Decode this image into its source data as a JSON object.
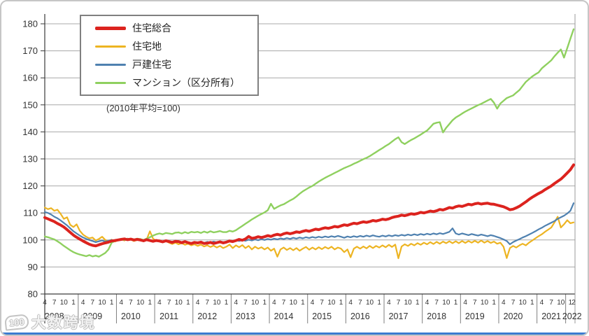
{
  "watermark": {
    "logo": "100",
    "text": "大数跨境"
  },
  "frame": {
    "accent_bar_color": "#3b7bd0",
    "grid_color": "#a8a8a8",
    "axis_color": "#3a3a3a",
    "separator_color": "#7f7f7f"
  },
  "chart_data": {
    "type": "line",
    "title": "",
    "note": "(2010年平均=100)",
    "legend_position": "top-left",
    "grid": true,
    "y_axis": {
      "min": 80,
      "max": 180,
      "step": 10,
      "tick_labels": [
        "80",
        "90",
        "100",
        "110",
        "120",
        "130",
        "140",
        "150",
        "160",
        "170",
        "180"
      ]
    },
    "x_axis": {
      "start_month": "2008-04",
      "end_month": "2022-02",
      "months_total": 167,
      "quarter_tick_pattern": [
        "4",
        "7",
        "10",
        "1"
      ],
      "final_extra_tick": "2",
      "years": [
        "2008",
        "2009",
        "2010",
        "2011",
        "2012",
        "2013",
        "2014",
        "2015",
        "2016",
        "2017",
        "2018",
        "2019",
        "2020",
        "2021",
        "2022"
      ]
    },
    "series": [
      {
        "key": "total",
        "name": "住宅総合",
        "color": "#dc231e",
        "values": [
          108.3,
          107.8,
          107.3,
          106.8,
          106.1,
          105.5,
          104.8,
          103.8,
          102.8,
          101.8,
          101.0,
          100.3,
          99.6,
          99.0,
          98.4,
          98.0,
          97.8,
          98.2,
          98.6,
          98.9,
          99.2,
          99.6,
          99.8,
          100.0,
          100.2,
          100.4,
          100.1,
          100.3,
          100.0,
          100.2,
          100.0,
          99.7,
          100.1,
          99.8,
          99.5,
          99.8,
          99.6,
          99.3,
          99.7,
          99.4,
          99.1,
          99.5,
          99.4,
          99.0,
          99.4,
          99.0,
          98.7,
          99.1,
          98.9,
          99.2,
          98.7,
          98.8,
          99.1,
          98.7,
          99.0,
          99.3,
          98.9,
          99.2,
          99.6,
          99.4,
          99.8,
          100.2,
          99.9,
          100.4,
          101.3,
          100.6,
          100.8,
          101.2,
          100.9,
          101.2,
          101.6,
          101.3,
          101.8,
          102.1,
          101.8,
          102.3,
          102.6,
          102.3,
          102.6,
          103.0,
          102.8,
          103.2,
          103.5,
          103.2,
          103.6,
          104.0,
          103.8,
          104.2,
          104.5,
          104.3,
          104.6,
          105.0,
          104.8,
          105.2,
          105.6,
          105.4,
          105.8,
          106.2,
          106.0,
          106.4,
          106.7,
          106.5,
          106.8,
          107.2,
          107.0,
          107.3,
          107.7,
          107.5,
          107.8,
          108.3,
          108.6,
          108.8,
          109.2,
          109.0,
          109.3,
          109.7,
          109.5,
          109.8,
          110.2,
          110.0,
          110.3,
          110.7,
          110.5,
          110.8,
          111.3,
          111.1,
          111.5,
          112.0,
          111.8,
          112.3,
          112.6,
          112.4,
          112.8,
          113.2,
          113.0,
          113.4,
          113.6,
          113.3,
          113.5,
          113.6,
          113.3,
          113.2,
          112.9,
          112.6,
          112.3,
          111.8,
          111.2,
          111.4,
          111.9,
          112.5,
          113.3,
          114.1,
          115.0,
          115.8,
          116.5,
          117.2,
          117.8,
          118.6,
          119.3,
          120.0,
          120.9,
          121.7,
          122.5,
          123.6,
          124.8,
          126.0,
          127.8
        ]
      },
      {
        "key": "land",
        "name": "住宅地",
        "color": "#edb422",
        "values": [
          112.0,
          111.4,
          111.8,
          110.8,
          111.2,
          109.6,
          107.8,
          108.4,
          105.6,
          104.8,
          105.8,
          103.4,
          102.0,
          101.2,
          100.6,
          100.9,
          99.8,
          100.4,
          101.2,
          100.0,
          99.5,
          100.1,
          99.4,
          99.9,
          100.3,
          99.8,
          100.5,
          100.1,
          99.6,
          100.0,
          100.4,
          99.8,
          100.2,
          103.2,
          100.5,
          99.6,
          99.9,
          99.2,
          99.6,
          99.0,
          98.5,
          99.0,
          98.4,
          98.8,
          98.2,
          98.6,
          98.0,
          98.4,
          97.8,
          98.3,
          97.6,
          98.0,
          97.4,
          97.9,
          97.2,
          97.8,
          97.0,
          97.5,
          98.3,
          97.0,
          98.0,
          97.3,
          98.1,
          97.0,
          97.8,
          96.5,
          97.5,
          96.8,
          97.3,
          96.5,
          97.2,
          96.0,
          96.8,
          93.8,
          96.5,
          97.2,
          96.3,
          97.0,
          96.2,
          97.0,
          96.0,
          96.8,
          97.4,
          96.4,
          97.2,
          96.5,
          97.3,
          96.6,
          97.4,
          96.8,
          97.5,
          96.5,
          97.2,
          96.8,
          95.5,
          96.5,
          93.6,
          96.8,
          97.5,
          96.8,
          97.6,
          96.9,
          97.8,
          97.0,
          97.8,
          97.2,
          98.0,
          97.3,
          98.2,
          97.4,
          98.3,
          93.2,
          97.6,
          98.4,
          97.8,
          98.6,
          98.0,
          98.8,
          98.2,
          99.0,
          98.4,
          99.2,
          98.5,
          99.3,
          98.6,
          99.4,
          98.8,
          99.5,
          98.8,
          99.5,
          98.8,
          99.6,
          98.9,
          99.6,
          99.0,
          99.7,
          99.0,
          99.8,
          99.0,
          99.6,
          98.9,
          99.4,
          98.6,
          99.0,
          97.5,
          93.3,
          97.0,
          97.8,
          97.2,
          98.0,
          98.6,
          98.0,
          99.0,
          99.8,
          100.6,
          101.4,
          102.1,
          103.0,
          103.8,
          104.6,
          106.5,
          108.6,
          104.6,
          105.8,
          107.3,
          106.2,
          106.5
        ]
      },
      {
        "key": "detached",
        "name": "戸建住宅",
        "color": "#4f81b0",
        "values": [
          110.3,
          110.0,
          109.4,
          108.6,
          108.0,
          107.2,
          106.3,
          105.4,
          104.3,
          103.2,
          102.4,
          101.6,
          100.9,
          100.4,
          100.0,
          99.6,
          99.2,
          99.5,
          99.8,
          99.4,
          99.7,
          100.0,
          99.7,
          100.1,
          100.4,
          100.1,
          100.5,
          100.3,
          99.9,
          100.2,
          100.0,
          99.7,
          100.0,
          99.8,
          99.5,
          99.9,
          99.6,
          99.3,
          99.7,
          99.5,
          99.1,
          99.5,
          99.2,
          98.9,
          99.3,
          99.0,
          98.7,
          99.1,
          98.8,
          99.2,
          98.9,
          99.3,
          99.0,
          99.4,
          99.1,
          99.5,
          99.2,
          99.4,
          99.8,
          99.5,
          99.9,
          99.6,
          100.0,
          99.7,
          100.1,
          99.8,
          100.2,
          99.9,
          100.3,
          100.0,
          100.4,
          100.1,
          100.5,
          100.2,
          100.6,
          100.3,
          100.7,
          100.4,
          100.8,
          100.5,
          100.9,
          100.6,
          101.0,
          100.7,
          101.1,
          100.8,
          101.2,
          100.9,
          101.3,
          101.0,
          101.4,
          101.1,
          101.5,
          101.2,
          100.8,
          101.3,
          101.0,
          101.4,
          101.1,
          101.5,
          101.2,
          101.6,
          101.3,
          101.7,
          101.4,
          101.2,
          101.6,
          101.3,
          101.7,
          101.4,
          101.8,
          101.5,
          101.9,
          101.6,
          102.0,
          101.7,
          102.1,
          101.8,
          102.2,
          101.9,
          102.3,
          102.0,
          102.4,
          102.1,
          102.5,
          102.2,
          102.6,
          103.0,
          104.3,
          102.4,
          102.0,
          102.4,
          102.1,
          101.8,
          102.2,
          101.9,
          101.6,
          102.0,
          101.7,
          101.4,
          101.8,
          101.5,
          101.1,
          100.7,
          100.2,
          99.6,
          98.4,
          99.2,
          99.8,
          100.3,
          100.9,
          101.4,
          102.0,
          102.6,
          103.2,
          103.9,
          104.5,
          105.2,
          105.8,
          106.4,
          107.0,
          107.8,
          108.4,
          109.0,
          109.8,
          110.8,
          113.6
        ]
      },
      {
        "key": "condo",
        "name": "マンション（区分所有）",
        "color": "#8fd05f",
        "values": [
          101.3,
          101.0,
          100.6,
          100.2,
          99.5,
          98.7,
          97.8,
          97.0,
          96.2,
          95.5,
          95.0,
          94.6,
          94.3,
          94.0,
          94.4,
          93.9,
          94.2,
          93.8,
          94.5,
          95.2,
          96.5,
          99.0,
          99.6,
          99.9,
          100.2,
          100.0,
          100.4,
          100.4,
          100.1,
          100.5,
          100.3,
          100.0,
          100.5,
          101.0,
          101.6,
          102.1,
          102.4,
          102.1,
          102.6,
          102.4,
          102.2,
          102.7,
          102.8,
          102.4,
          102.9,
          102.5,
          103.0,
          102.8,
          103.0,
          102.6,
          103.1,
          102.7,
          103.2,
          102.8,
          103.0,
          103.3,
          102.9,
          102.9,
          103.4,
          103.1,
          103.6,
          104.4,
          105.2,
          106.0,
          106.8,
          107.6,
          108.3,
          109.0,
          109.6,
          110.2,
          111.0,
          113.4,
          111.5,
          112.2,
          112.8,
          113.2,
          113.9,
          114.6,
          115.2,
          116.1,
          117.1,
          118.0,
          118.7,
          119.4,
          120.0,
          120.8,
          121.6,
          122.3,
          123.0,
          123.6,
          124.2,
          124.8,
          125.4,
          126.0,
          126.6,
          127.1,
          127.6,
          128.2,
          128.7,
          129.3,
          129.9,
          130.4,
          131.0,
          131.8,
          132.5,
          133.3,
          134.0,
          134.8,
          135.5,
          136.4,
          137.3,
          138.0,
          136.2,
          135.5,
          136.3,
          137.0,
          137.6,
          138.3,
          139.0,
          139.8,
          140.5,
          141.7,
          143.0,
          143.4,
          143.6,
          139.8,
          141.5,
          142.9,
          144.3,
          145.3,
          146.0,
          146.8,
          147.5,
          148.1,
          148.7,
          149.3,
          149.9,
          150.4,
          151.0,
          151.6,
          152.2,
          150.8,
          148.6,
          150.5,
          151.5,
          152.5,
          153.0,
          153.5,
          154.5,
          155.5,
          157.0,
          158.5,
          159.5,
          160.5,
          161.3,
          162.0,
          163.5,
          164.5,
          165.5,
          166.5,
          168.0,
          169.3,
          170.5,
          167.5,
          171.0,
          174.5,
          178.0
        ]
      }
    ]
  }
}
